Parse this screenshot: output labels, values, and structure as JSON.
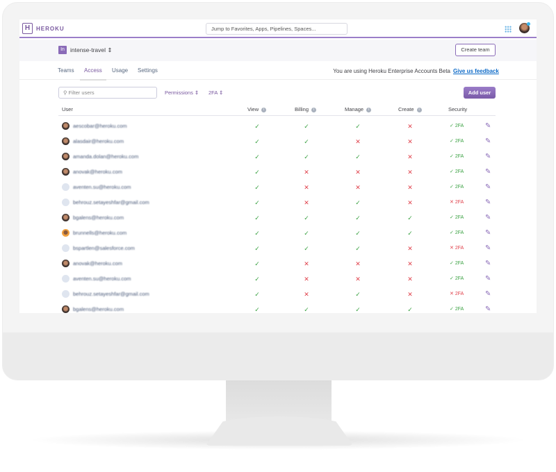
{
  "header": {
    "brand": "HEROKU",
    "logo": "H",
    "search_placeholder": "Jump to Favorites, Apps, Pipelines, Spaces..."
  },
  "team": {
    "badge": "In",
    "name": "intense-travel",
    "create_button": "Create team"
  },
  "tabs": [
    "Teams",
    "Access",
    "Usage",
    "Settings"
  ],
  "active_tab": "Access",
  "beta_notice": "You are using Heroku Enterprise Accounts Beta",
  "feedback_link": "Give us feedback",
  "toolbar": {
    "filter_placeholder": "Filter users",
    "permissions": "Permissions ⇕",
    "twofa": "2FA ⇕",
    "add_user": "Add user"
  },
  "columns": [
    "User",
    "View",
    "Billing",
    "Manage",
    "Create",
    "Security"
  ],
  "security_label": "2FA",
  "colors": {
    "accent": "#79589f",
    "ok": "#3aa142",
    "no": "#e0414b"
  },
  "rows": [
    {
      "email": "aescobar@heroku.com",
      "avatar": "photo",
      "view": true,
      "billing": true,
      "manage": true,
      "create": false,
      "twofa": true
    },
    {
      "email": "alasdair@heroku.com",
      "avatar": "photo",
      "view": true,
      "billing": true,
      "manage": false,
      "create": false,
      "twofa": true
    },
    {
      "email": "amanda.dolan@heroku.com",
      "avatar": "photo",
      "view": true,
      "billing": true,
      "manage": true,
      "create": false,
      "twofa": true
    },
    {
      "email": "anovak@heroku.com",
      "avatar": "photo",
      "view": true,
      "billing": false,
      "manage": false,
      "create": false,
      "twofa": true
    },
    {
      "email": "aventen.su@heroku.com",
      "avatar": "default",
      "view": true,
      "billing": false,
      "manage": false,
      "create": false,
      "twofa": true
    },
    {
      "email": "behrouz.setayeshfar@gmail.com",
      "avatar": "default",
      "view": true,
      "billing": false,
      "manage": true,
      "create": false,
      "twofa": false
    },
    {
      "email": "bgalens@heroku.com",
      "avatar": "photo",
      "view": true,
      "billing": true,
      "manage": true,
      "create": true,
      "twofa": true
    },
    {
      "email": "brunnells@heroku.com",
      "avatar": "orange",
      "view": true,
      "billing": true,
      "manage": true,
      "create": true,
      "twofa": true
    },
    {
      "email": "bspartlen@salesforce.com",
      "avatar": "default",
      "view": true,
      "billing": true,
      "manage": true,
      "create": false,
      "twofa": false
    },
    {
      "email": "anovak@heroku.com",
      "avatar": "photo",
      "view": true,
      "billing": false,
      "manage": false,
      "create": false,
      "twofa": true
    },
    {
      "email": "aventen.su@heroku.com",
      "avatar": "default",
      "view": true,
      "billing": false,
      "manage": false,
      "create": false,
      "twofa": true
    },
    {
      "email": "behrouz.setayeshfar@gmail.com",
      "avatar": "default",
      "view": true,
      "billing": false,
      "manage": true,
      "create": false,
      "twofa": false
    },
    {
      "email": "bgalens@heroku.com",
      "avatar": "photo",
      "view": true,
      "billing": true,
      "manage": true,
      "create": true,
      "twofa": true
    }
  ]
}
